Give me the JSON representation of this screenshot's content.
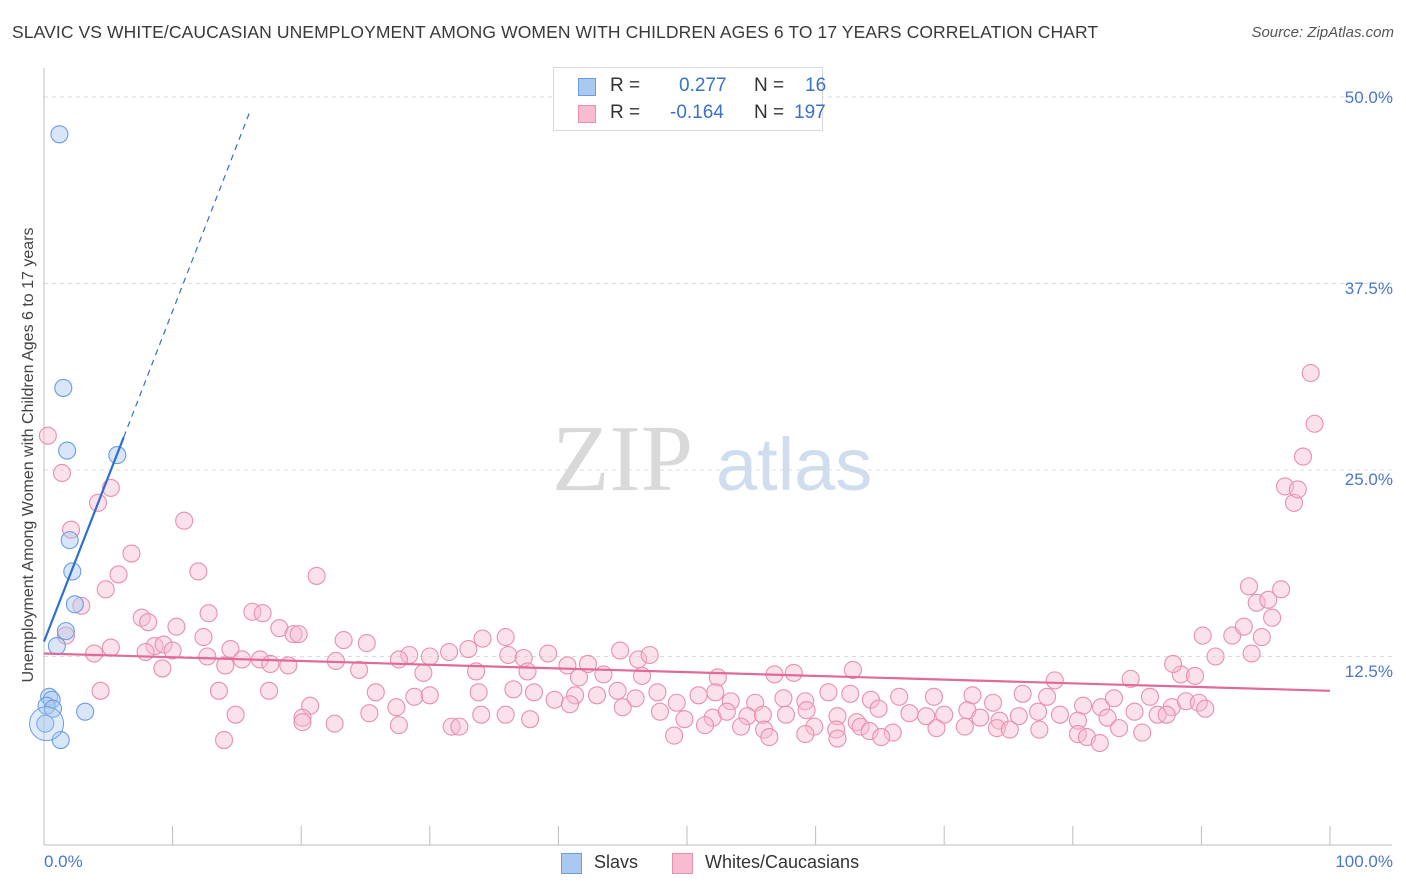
{
  "header": {
    "title": "SLAVIC VS WHITE/CAUCASIAN UNEMPLOYMENT AMONG WOMEN WITH CHILDREN AGES 6 TO 17 YEARS CORRELATION CHART",
    "source": "Source: ZipAtlas.com"
  },
  "watermark": {
    "zip": "ZIP",
    "atlas": "atlas"
  },
  "stats": [
    {
      "r_label": "R =",
      "r_value": "0.277",
      "n_label": "N =",
      "n_value": "16",
      "color": "#aac8f0",
      "border": "#6a9ee0"
    },
    {
      "r_label": "R =",
      "r_value": "-0.164",
      "n_label": "N =",
      "n_value": "197",
      "color": "#f7bcd0",
      "border": "#e890ad"
    }
  ],
  "legend": [
    {
      "label": "Slavs",
      "color": "#aac8f0",
      "border": "#6a9ee0"
    },
    {
      "label": "Whites/Caucasians",
      "color": "#f7bcd0",
      "border": "#e890ad"
    }
  ],
  "chart_data": {
    "type": "scatter",
    "title": "SLAVIC VS WHITE/CAUCASIAN UNEMPLOYMENT AMONG WOMEN WITH CHILDREN AGES 6 TO 17 YEARS CORRELATION CHART",
    "xlabel": "",
    "ylabel": "Unemployment Among Women with Children Ages 6 to 17 years",
    "xlim": [
      0,
      100
    ],
    "ylim": [
      0,
      50
    ],
    "x_tick_labels": [
      "0.0%",
      "100.0%"
    ],
    "y_ticks": [
      12.5,
      25.0,
      37.5,
      50.0
    ],
    "y_tick_labels": [
      "12.5%",
      "25.0%",
      "37.5%",
      "50.0%"
    ],
    "colors": {
      "slavs": "#6a9ee0",
      "whites": "#e890ad",
      "slavs_line": "#2f6fd0",
      "whites_line": "#e06a98"
    },
    "series": [
      {
        "name": "Slavs",
        "r": 0.277,
        "n": 16,
        "trend": {
          "x0": 0.0,
          "y0": 13.5,
          "x1": 6.2,
          "y1": 27.2,
          "dash_to_x": 16.0,
          "dash_to_y": 49.0
        },
        "points": [
          [
            1.2,
            47.5
          ],
          [
            1.5,
            30.5
          ],
          [
            1.8,
            26.3
          ],
          [
            5.7,
            26.0
          ],
          [
            2.0,
            20.3
          ],
          [
            2.2,
            18.2
          ],
          [
            2.4,
            16.0
          ],
          [
            1.7,
            14.2
          ],
          [
            1.0,
            13.2
          ],
          [
            0.4,
            9.8
          ],
          [
            0.6,
            9.6
          ],
          [
            0.2,
            9.2
          ],
          [
            0.7,
            9.0
          ],
          [
            3.2,
            8.8
          ],
          [
            0.1,
            8.0
          ],
          [
            1.3,
            6.9
          ]
        ]
      },
      {
        "name": "Whites/Caucasians",
        "r": -0.164,
        "n": 197,
        "trend": {
          "x0": 0.0,
          "y0": 12.7,
          "x1": 100.0,
          "y1": 10.2
        },
        "points": [
          [
            0.3,
            27.3
          ],
          [
            1.4,
            24.8
          ],
          [
            4.2,
            22.8
          ],
          [
            5.2,
            23.8
          ],
          [
            2.1,
            21.0
          ],
          [
            10.9,
            21.6
          ],
          [
            6.8,
            19.4
          ],
          [
            12.0,
            18.2
          ],
          [
            5.8,
            18.0
          ],
          [
            21.2,
            17.9
          ],
          [
            4.8,
            17.0
          ],
          [
            2.9,
            15.9
          ],
          [
            12.8,
            15.4
          ],
          [
            16.2,
            15.5
          ],
          [
            17.0,
            15.4
          ],
          [
            7.6,
            15.1
          ],
          [
            8.1,
            14.8
          ],
          [
            10.3,
            14.5
          ],
          [
            18.3,
            14.4
          ],
          [
            1.7,
            13.9
          ],
          [
            19.4,
            14.0
          ],
          [
            19.8,
            14.0
          ],
          [
            12.4,
            13.8
          ],
          [
            23.3,
            13.6
          ],
          [
            25.1,
            13.4
          ],
          [
            8.6,
            13.2
          ],
          [
            9.3,
            13.3
          ],
          [
            14.5,
            13.0
          ],
          [
            5.2,
            13.1
          ],
          [
            10.0,
            12.9
          ],
          [
            3.9,
            12.7
          ],
          [
            7.9,
            12.8
          ],
          [
            12.7,
            12.5
          ],
          [
            15.4,
            12.3
          ],
          [
            16.8,
            12.3
          ],
          [
            22.7,
            12.2
          ],
          [
            28.4,
            12.6
          ],
          [
            27.6,
            12.3
          ],
          [
            30.0,
            12.5
          ],
          [
            31.5,
            12.8
          ],
          [
            33.0,
            13.0
          ],
          [
            34.1,
            13.7
          ],
          [
            35.9,
            13.8
          ],
          [
            36.1,
            12.6
          ],
          [
            37.3,
            12.4
          ],
          [
            39.2,
            12.7
          ],
          [
            40.7,
            11.9
          ],
          [
            42.3,
            12.0
          ],
          [
            44.8,
            12.9
          ],
          [
            46.2,
            12.3
          ],
          [
            47.1,
            12.6
          ],
          [
            17.6,
            12.0
          ],
          [
            19.0,
            11.9
          ],
          [
            9.2,
            11.7
          ],
          [
            14.1,
            11.9
          ],
          [
            24.5,
            11.6
          ],
          [
            29.5,
            11.4
          ],
          [
            33.6,
            11.5
          ],
          [
            37.6,
            11.5
          ],
          [
            41.6,
            11.1
          ],
          [
            43.5,
            11.3
          ],
          [
            46.5,
            11.2
          ],
          [
            52.4,
            11.1
          ],
          [
            56.8,
            11.3
          ],
          [
            58.3,
            11.4
          ],
          [
            62.9,
            11.6
          ],
          [
            78.6,
            10.9
          ],
          [
            84.5,
            11.0
          ],
          [
            88.4,
            11.3
          ],
          [
            89.5,
            11.2
          ],
          [
            87.8,
            12.0
          ],
          [
            93.7,
            17.2
          ],
          [
            94.3,
            16.1
          ],
          [
            95.2,
            16.3
          ],
          [
            96.2,
            17.0
          ],
          [
            95.5,
            15.1
          ],
          [
            92.4,
            13.9
          ],
          [
            93.3,
            14.5
          ],
          [
            94.7,
            13.8
          ],
          [
            91.1,
            12.5
          ],
          [
            93.9,
            12.7
          ],
          [
            90.1,
            13.9
          ],
          [
            96.5,
            23.9
          ],
          [
            97.2,
            22.8
          ],
          [
            97.5,
            23.7
          ],
          [
            97.9,
            25.9
          ],
          [
            98.8,
            28.1
          ],
          [
            98.5,
            31.5
          ],
          [
            4.4,
            10.2
          ],
          [
            13.6,
            10.2
          ],
          [
            17.5,
            10.2
          ],
          [
            25.8,
            10.1
          ],
          [
            28.8,
            9.8
          ],
          [
            30.0,
            9.9
          ],
          [
            33.8,
            10.1
          ],
          [
            36.5,
            10.3
          ],
          [
            38.1,
            10.1
          ],
          [
            39.7,
            9.6
          ],
          [
            41.3,
            9.9
          ],
          [
            43.0,
            9.9
          ],
          [
            44.6,
            10.2
          ],
          [
            46.0,
            9.7
          ],
          [
            47.7,
            10.1
          ],
          [
            49.2,
            9.4
          ],
          [
            50.9,
            9.9
          ],
          [
            52.2,
            10.1
          ],
          [
            53.4,
            9.5
          ],
          [
            55.3,
            9.4
          ],
          [
            57.5,
            9.7
          ],
          [
            59.2,
            9.5
          ],
          [
            61.0,
            10.1
          ],
          [
            62.7,
            10.0
          ],
          [
            64.3,
            9.6
          ],
          [
            66.5,
            9.8
          ],
          [
            69.2,
            9.8
          ],
          [
            72.2,
            9.9
          ],
          [
            73.8,
            9.4
          ],
          [
            76.1,
            10.0
          ],
          [
            78.0,
            9.8
          ],
          [
            80.8,
            9.2
          ],
          [
            82.2,
            9.1
          ],
          [
            83.2,
            9.7
          ],
          [
            86.0,
            9.8
          ],
          [
            87.7,
            9.1
          ],
          [
            88.8,
            9.5
          ],
          [
            89.8,
            9.4
          ],
          [
            90.3,
            9.0
          ],
          [
            14.9,
            8.6
          ],
          [
            20.7,
            9.2
          ],
          [
            20.1,
            8.4
          ],
          [
            25.3,
            8.7
          ],
          [
            27.4,
            9.1
          ],
          [
            34.0,
            8.6
          ],
          [
            35.9,
            8.6
          ],
          [
            37.8,
            8.3
          ],
          [
            40.9,
            9.3
          ],
          [
            45.0,
            9.1
          ],
          [
            47.9,
            8.8
          ],
          [
            49.8,
            8.3
          ],
          [
            52.0,
            8.4
          ],
          [
            53.1,
            8.8
          ],
          [
            54.7,
            8.5
          ],
          [
            55.9,
            8.6
          ],
          [
            57.7,
            8.6
          ],
          [
            59.3,
            8.9
          ],
          [
            61.7,
            8.5
          ],
          [
            63.2,
            8.1
          ],
          [
            64.9,
            9.0
          ],
          [
            67.3,
            8.7
          ],
          [
            68.6,
            8.5
          ],
          [
            70.0,
            8.6
          ],
          [
            71.8,
            8.9
          ],
          [
            72.8,
            8.4
          ],
          [
            74.3,
            8.2
          ],
          [
            75.8,
            8.5
          ],
          [
            77.3,
            8.8
          ],
          [
            79.0,
            8.6
          ],
          [
            80.4,
            8.2
          ],
          [
            82.7,
            8.4
          ],
          [
            84.8,
            8.8
          ],
          [
            86.6,
            8.6
          ],
          [
            87.3,
            8.6
          ],
          [
            20.1,
            8.1
          ],
          [
            22.6,
            8.0
          ],
          [
            27.6,
            7.9
          ],
          [
            31.7,
            7.8
          ],
          [
            32.3,
            7.8
          ],
          [
            51.4,
            7.9
          ],
          [
            54.2,
            7.8
          ],
          [
            56.0,
            7.6
          ],
          [
            59.9,
            7.8
          ],
          [
            61.6,
            7.6
          ],
          [
            63.5,
            7.8
          ],
          [
            64.2,
            7.5
          ],
          [
            66.0,
            7.4
          ],
          [
            69.4,
            7.7
          ],
          [
            71.6,
            7.8
          ],
          [
            74.1,
            7.7
          ],
          [
            75.1,
            7.6
          ],
          [
            77.4,
            7.6
          ],
          [
            80.4,
            7.3
          ],
          [
            83.6,
            7.7
          ],
          [
            85.4,
            7.4
          ],
          [
            14.0,
            6.9
          ],
          [
            49.0,
            7.2
          ],
          [
            59.2,
            7.3
          ],
          [
            61.7,
            7.0
          ],
          [
            65.1,
            7.1
          ],
          [
            81.1,
            7.1
          ],
          [
            82.1,
            6.7
          ],
          [
            56.4,
            7.1
          ]
        ]
      }
    ]
  }
}
